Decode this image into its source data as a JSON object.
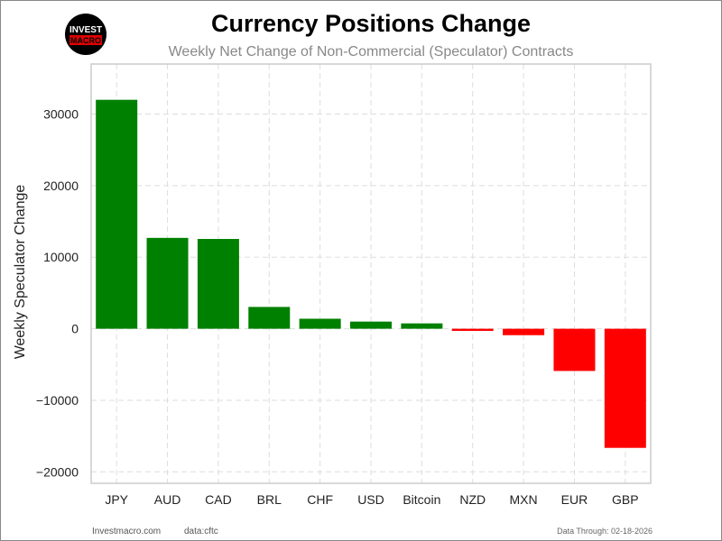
{
  "chart_data": {
    "type": "bar",
    "title": "Currency Positions Change",
    "subtitle": "Weekly Net Change of Non-Commercial (Speculator) Contracts",
    "xlabel": "",
    "ylabel": "Weekly Speculator Change",
    "categories": [
      "JPY",
      "AUD",
      "CAD",
      "BRL",
      "CHF",
      "USD",
      "Bitcoin",
      "NZD",
      "MXN",
      "EUR",
      "GBP"
    ],
    "values": [
      32000,
      12700,
      12550,
      3050,
      1400,
      1000,
      750,
      -300,
      -900,
      -5900,
      -16650
    ],
    "ylim": [
      -21600,
      37000
    ],
    "yticks": [
      -20000,
      -10000,
      0,
      10000,
      20000,
      30000
    ],
    "ytick_labels": [
      "−20000",
      "−10000",
      "0",
      "10000",
      "20000",
      "30000"
    ],
    "grid": true,
    "positive_color": "#008000",
    "negative_color": "#ff0000"
  },
  "logo": {
    "line1": "INVEST",
    "line2": "MACRO"
  },
  "footer": {
    "site": "Investmacro.com",
    "source": "data:cftc",
    "date": "Data Through: 02-18-2026"
  }
}
